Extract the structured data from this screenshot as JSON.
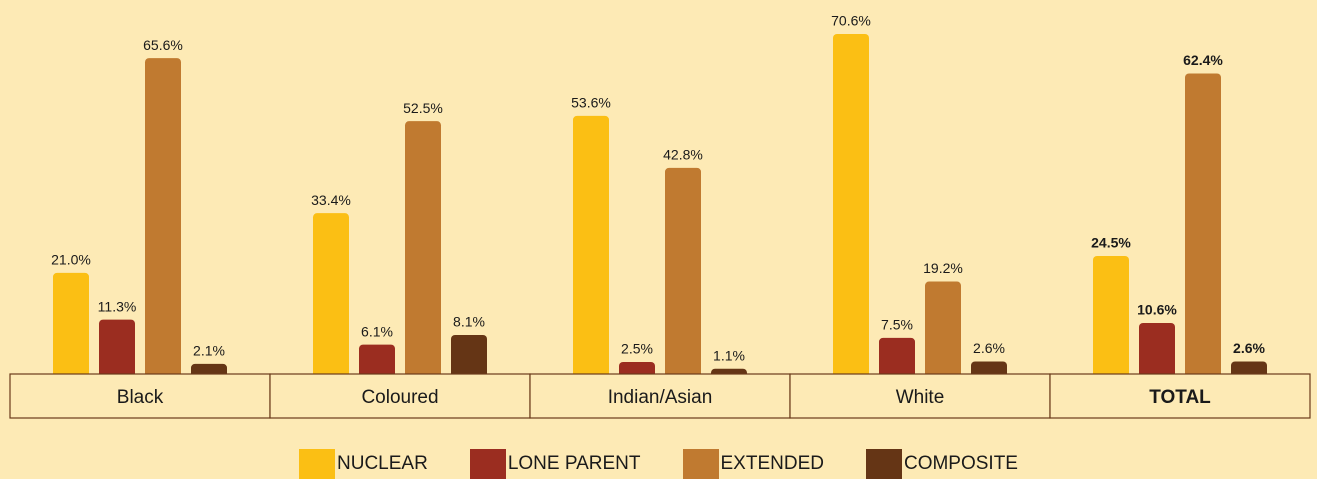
{
  "chart_data": {
    "type": "bar",
    "categories": [
      "Black",
      "Coloured",
      "Indian/Asian",
      "White",
      "TOTAL"
    ],
    "series": [
      {
        "name": "NUCLEAR",
        "color": "#fbbf14",
        "values": [
          21.0,
          33.4,
          53.6,
          70.6,
          24.5
        ],
        "value_labels": [
          "21.0%",
          "33.4%",
          "53.6%",
          "70.6%",
          "24.5%"
        ]
      },
      {
        "name": "LONE PARENT",
        "color": "#9b2d20",
        "values": [
          11.3,
          6.1,
          2.5,
          7.5,
          10.6
        ],
        "value_labels": [
          "11.3%",
          "6.1%",
          "2.5%",
          "7.5%",
          "10.6%"
        ]
      },
      {
        "name": "EXTENDED",
        "color": "#c07a30",
        "values": [
          65.6,
          52.5,
          42.8,
          19.2,
          62.4
        ],
        "value_labels": [
          "65.6%",
          "52.5%",
          "42.8%",
          "19.2%",
          "62.4%"
        ]
      },
      {
        "name": "COMPOSITE",
        "color": "#653515",
        "values": [
          2.1,
          8.1,
          1.1,
          2.6,
          2.6
        ],
        "value_labels": [
          "2.1%",
          "8.1%",
          "1.1%",
          "2.6%",
          "2.6%"
        ]
      }
    ]
  }
}
